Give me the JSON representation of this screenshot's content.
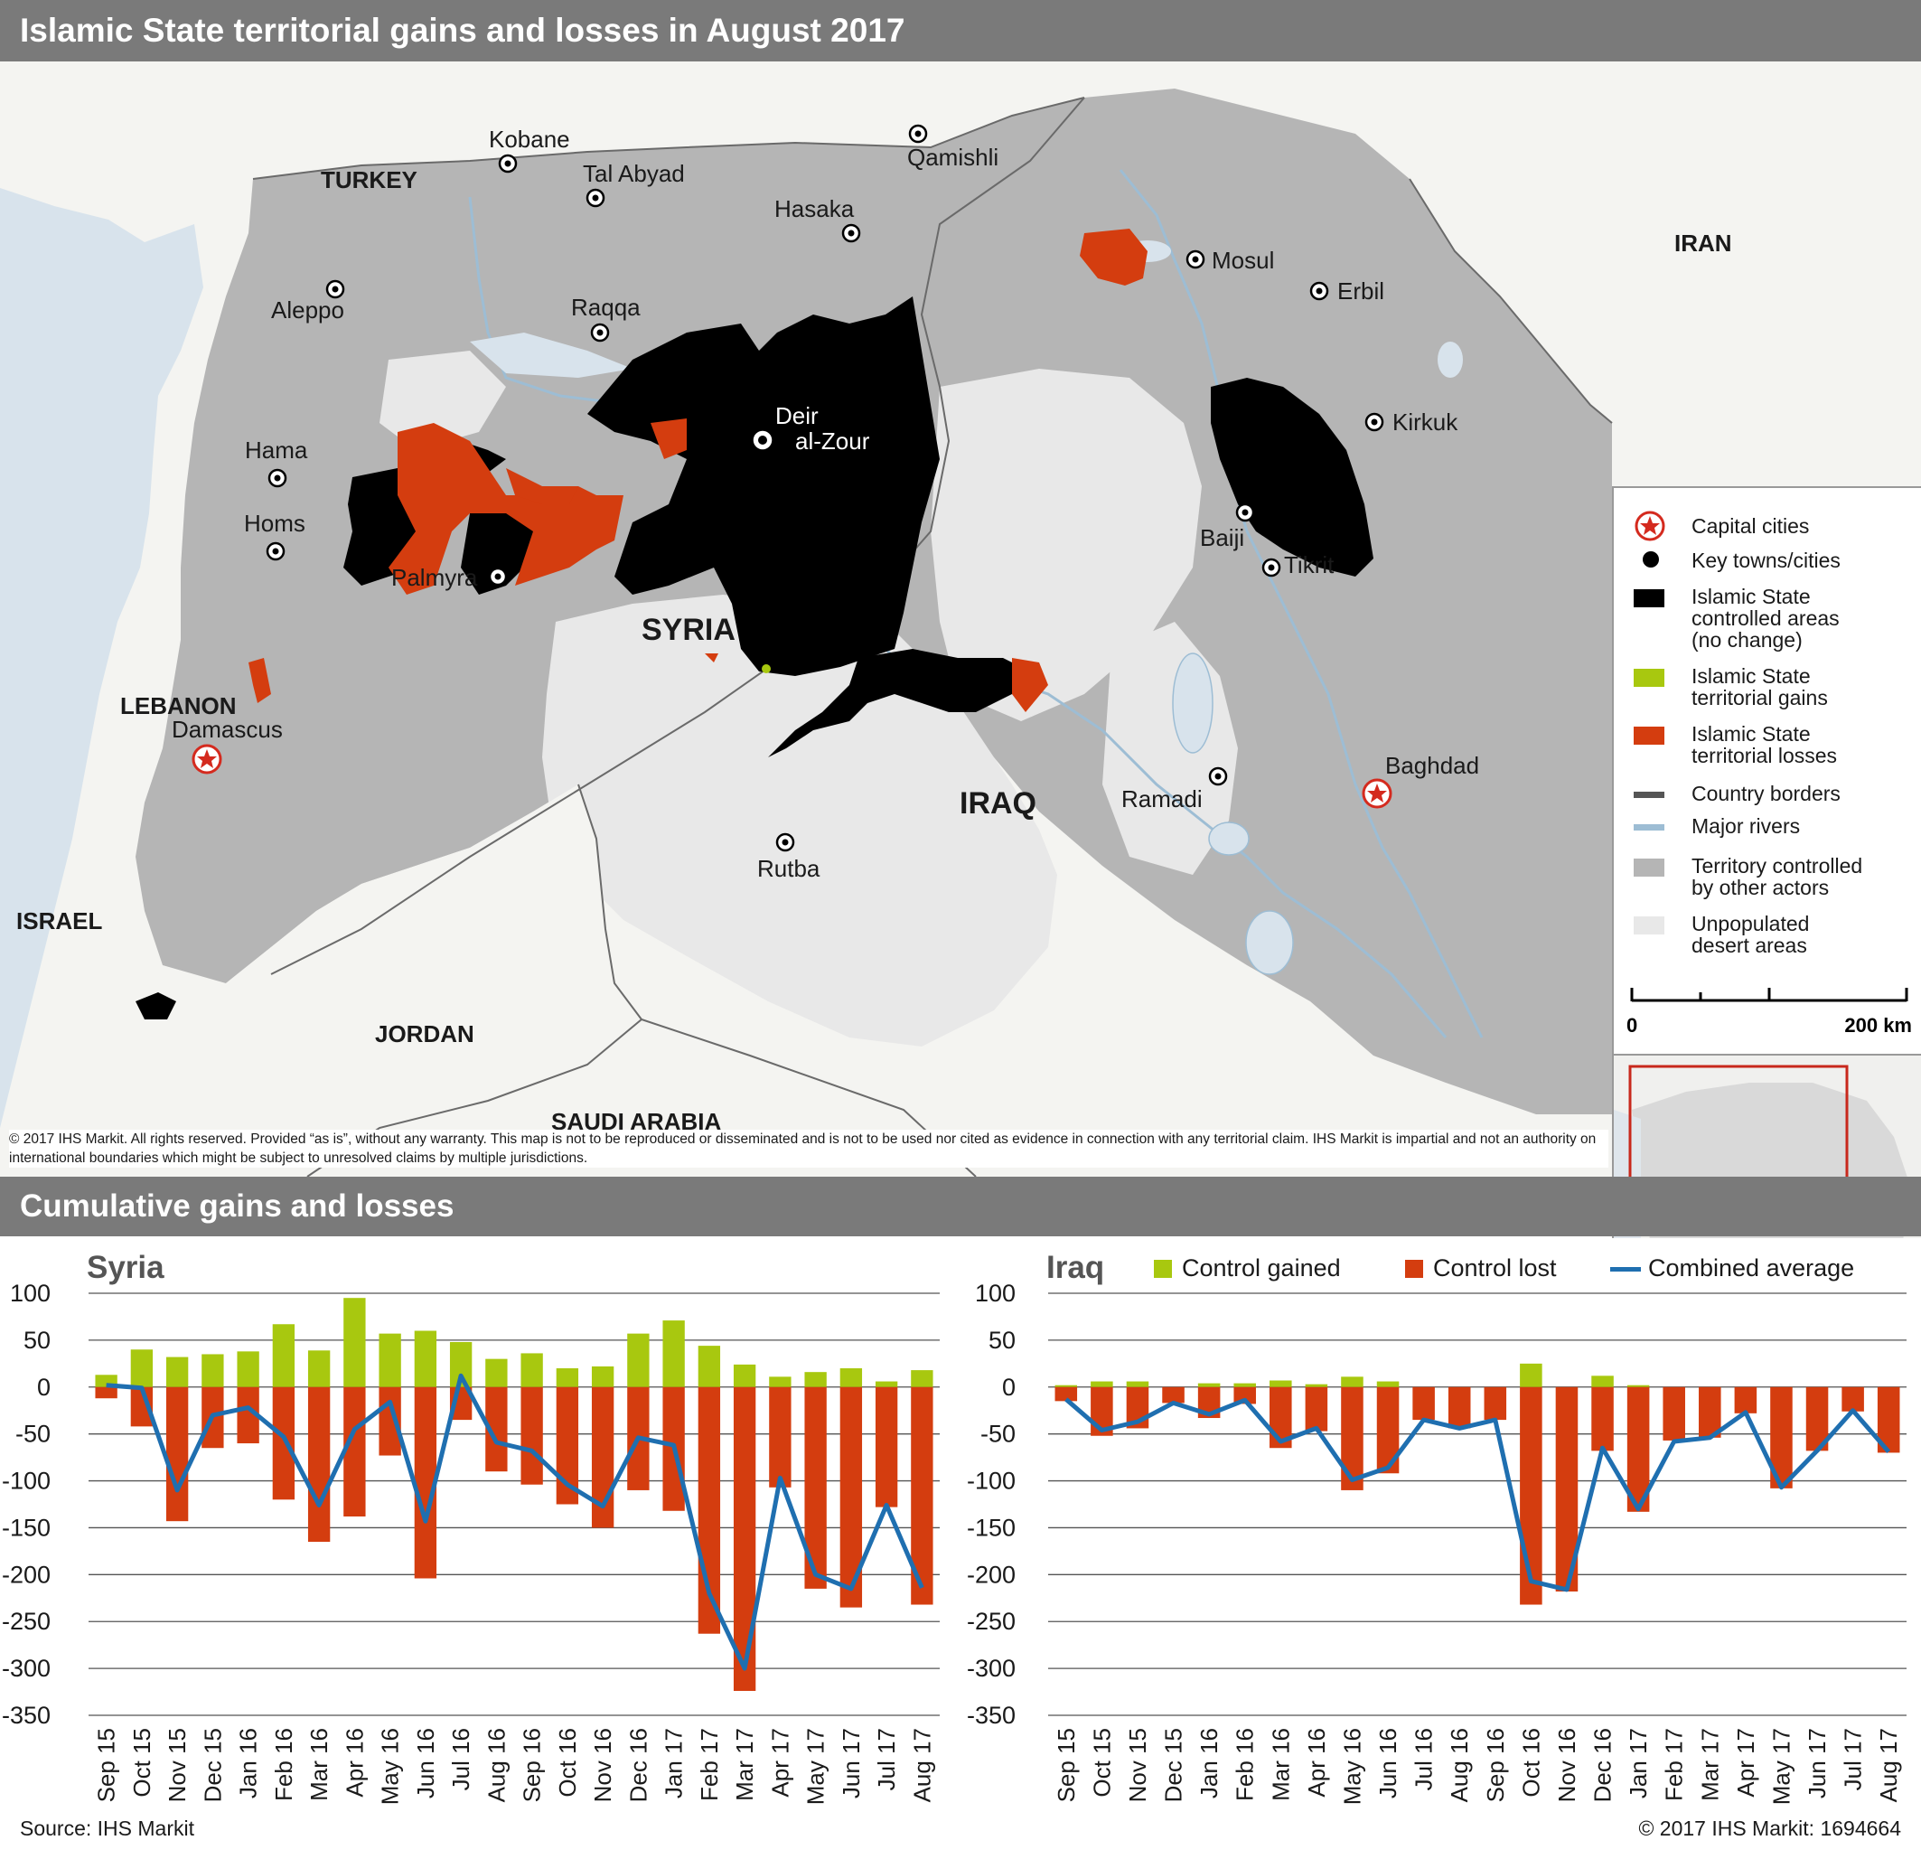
{
  "title": "Islamic State territorial gains and losses in August 2017",
  "subtitle": "Cumulative gains and losses",
  "map": {
    "countries": [
      "TURKEY",
      "IRAN",
      "SYRIA",
      "IRAQ",
      "LEBANON",
      "ISRAEL",
      "JORDAN",
      "SAUDI ARABIA"
    ],
    "cities": [
      "Kobane",
      "Tal Abyad",
      "Qamishli",
      "Hasaka",
      "Aleppo",
      "Raqqa",
      "Mosul",
      "Erbil",
      "Deir",
      "al-Zour",
      "Kirkuk",
      "Hama",
      "Homs",
      "Palmyra",
      "Baiji",
      "Tikrit",
      "Damascus",
      "Baghdad",
      "Ramadi",
      "Rutba"
    ],
    "colors": {
      "is_controlled": "#000000",
      "is_gains": "#a8c80f",
      "is_losses": "#d43d0f",
      "other_actors": "#b5b5b5",
      "desert": "#e8e8e8",
      "neighbour_land": "#f4f4f1",
      "water": "#d8e3ec",
      "river": "#9dbdd4",
      "border": "#6a6a6a",
      "capital_star": "#d42a1e"
    }
  },
  "legend": {
    "capital": "Capital cities",
    "towns": "Key towns/cities",
    "controlled": [
      "Islamic State",
      "controlled areas",
      "(no change)"
    ],
    "gains": [
      "Islamic State",
      "territorial gains"
    ],
    "losses": [
      "Islamic State",
      "territorial losses"
    ],
    "borders": "Country borders",
    "rivers": "Major rivers",
    "other": [
      "Territory controlled",
      "by other actors"
    ],
    "desert": [
      "Unpopulated",
      "desert areas"
    ],
    "scale_start": "0",
    "scale_end": "200 km"
  },
  "disclaimer": "© 2017 IHS Markit. All rights reserved. Provided “as is”, without any warranty. This map is not to be reproduced or disseminated and is not to be used nor cited as evidence in connection with any territorial claim. IHS Markit is impartial and not an authority on international boundaries which might be subject to unresolved claims by multiple jurisdictions.",
  "chart_legend": {
    "gained": "Control gained",
    "lost": "Control lost",
    "average": "Combined average"
  },
  "source": "Source: IHS Markit",
  "copyright": "© 2017 IHS Markit: 1694664",
  "chart_data": [
    {
      "type": "bar",
      "title": "Syria",
      "categories": [
        "Sep 15",
        "Oct 15",
        "Nov 15",
        "Dec 15",
        "Jan 16",
        "Feb 16",
        "Mar 16",
        "Apr 16",
        "May 16",
        "Jun 16",
        "Jul 16",
        "Aug 16",
        "Sep 16",
        "Oct 16",
        "Nov 16",
        "Dec 16",
        "Jan 17",
        "Feb 17",
        "Mar 17",
        "Apr 17",
        "May 17",
        "Jun 17",
        "Jul 17",
        "Aug 17"
      ],
      "ylim": [
        -350,
        100
      ],
      "yticks": [
        100,
        50,
        0,
        -50,
        -100,
        -150,
        -200,
        -250,
        -300,
        -350
      ],
      "series": [
        {
          "name": "Control gained",
          "color": "#a8c80f",
          "values": [
            13,
            40,
            32,
            35,
            38,
            67,
            39,
            95,
            57,
            60,
            48,
            30,
            36,
            20,
            22,
            57,
            71,
            44,
            24,
            11,
            16,
            20,
            6,
            18
          ]
        },
        {
          "name": "Control lost",
          "color": "#d43d0f",
          "values": [
            -12,
            -42,
            -143,
            -65,
            -60,
            -120,
            -165,
            -138,
            -73,
            -204,
            -35,
            -90,
            -104,
            -125,
            -150,
            -110,
            -132,
            -263,
            -324,
            -107,
            -215,
            -235,
            -128,
            -232
          ]
        },
        {
          "name": "Combined average",
          "color": "#1f6fb0",
          "values": [
            2,
            -1,
            -110,
            -30,
            -22,
            -53,
            -126,
            -45,
            -16,
            -143,
            12,
            -59,
            -68,
            -104,
            -127,
            -54,
            -62,
            -220,
            -300,
            -97,
            -200,
            -215,
            -126,
            -214
          ]
        }
      ]
    },
    {
      "type": "bar",
      "title": "Iraq",
      "categories": [
        "Sep 15",
        "Oct 15",
        "Nov 15",
        "Dec 15",
        "Jan 16",
        "Feb 16",
        "Mar 16",
        "Apr 16",
        "May 16",
        "Jun 16",
        "Jul 16",
        "Aug 16",
        "Sep 16",
        "Oct 16",
        "Nov 16",
        "Dec 16",
        "Jan 17",
        "Feb 17",
        "Mar 17",
        "Apr 17",
        "May 17",
        "Jun 17",
        "Jul 17",
        "Aug 17"
      ],
      "ylim": [
        -350,
        100
      ],
      "yticks": [
        100,
        50,
        0,
        -50,
        -100,
        -150,
        -200,
        -250,
        -300,
        -350
      ],
      "series": [
        {
          "name": "Control gained",
          "color": "#a8c80f",
          "values": [
            2,
            6,
            6,
            0,
            4,
            4,
            7,
            3,
            11,
            6,
            0,
            0,
            0,
            25,
            0,
            12,
            2,
            0,
            0,
            0,
            0,
            0,
            0,
            0
          ]
        },
        {
          "name": "Control lost",
          "color": "#d43d0f",
          "values": [
            -15,
            -52,
            -44,
            -17,
            -33,
            -18,
            -65,
            -47,
            -110,
            -92,
            -35,
            -44,
            -35,
            -232,
            -218,
            -68,
            -133,
            -57,
            -54,
            -28,
            -108,
            -68,
            -26,
            -70
          ]
        },
        {
          "name": "Combined average",
          "color": "#1f6fb0",
          "values": [
            -13,
            -46,
            -37,
            -17,
            -29,
            -14,
            -58,
            -44,
            -99,
            -86,
            -35,
            -44,
            -35,
            -207,
            -216,
            -65,
            -130,
            -58,
            -54,
            -27,
            -107,
            -68,
            -25,
            -69
          ]
        }
      ]
    }
  ]
}
